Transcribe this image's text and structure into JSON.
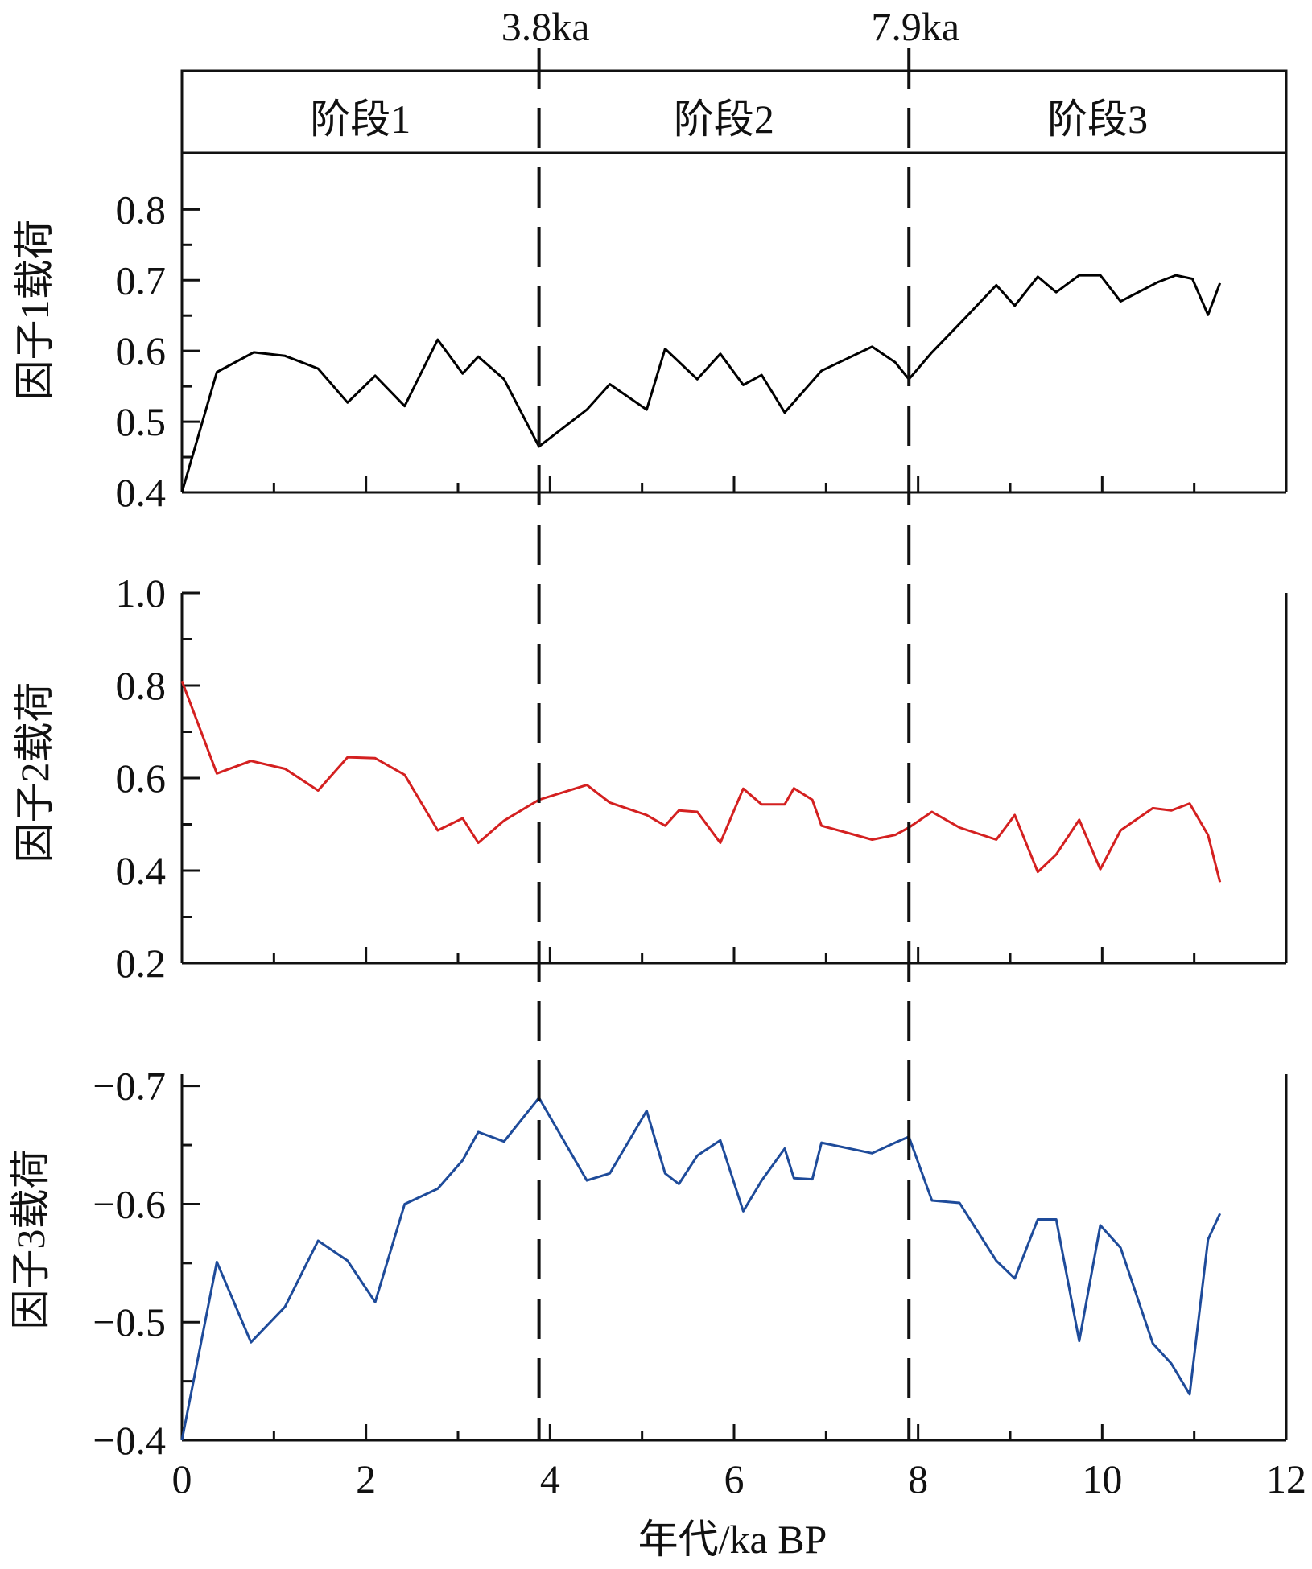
{
  "chart_data": {
    "type": "line",
    "xlabel": "年代/ka BP",
    "xlim": [
      0,
      12
    ],
    "xticks": [
      "0",
      "2",
      "4",
      "6",
      "8",
      "10",
      "12"
    ],
    "markers": [
      {
        "label": "3.8ka",
        "x": 3.88
      },
      {
        "label": "7.9ka",
        "x": 7.9
      }
    ],
    "stages": [
      "阶段1",
      "阶段2",
      "阶段3"
    ],
    "panels": [
      {
        "ylabel": "因子1载荷",
        "ylim": [
          0.4,
          0.88
        ],
        "yticks": [
          "0.4",
          "0.5",
          "0.6",
          "0.7",
          "0.8"
        ],
        "color": "#000000",
        "x": [
          0.0,
          0.38,
          0.78,
          1.12,
          1.48,
          1.8,
          2.1,
          2.42,
          2.78,
          3.05,
          3.22,
          3.5,
          3.88,
          4.4,
          4.65,
          5.05,
          5.25,
          5.6,
          5.85,
          6.1,
          6.3,
          6.55,
          6.95,
          7.5,
          7.75,
          7.9,
          8.15,
          8.5,
          8.85,
          9.05,
          9.3,
          9.5,
          9.75,
          9.98,
          10.2,
          10.6,
          10.8,
          10.98,
          11.15,
          11.28
        ],
        "values": [
          0.4,
          0.57,
          0.598,
          0.593,
          0.575,
          0.527,
          0.565,
          0.522,
          0.616,
          0.568,
          0.592,
          0.56,
          0.465,
          0.517,
          0.553,
          0.517,
          0.603,
          0.56,
          0.596,
          0.552,
          0.566,
          0.513,
          0.572,
          0.606,
          0.584,
          0.56,
          0.598,
          0.645,
          0.693,
          0.664,
          0.705,
          0.683,
          0.707,
          0.707,
          0.67,
          0.697,
          0.707,
          0.702,
          0.651,
          0.696
        ]
      },
      {
        "ylabel": "因子2载荷",
        "ylim": [
          0.2,
          1.0
        ],
        "yticks": [
          "0.2",
          "0.4",
          "0.6",
          "0.8",
          "1.0"
        ],
        "color": "#d42020",
        "x": [
          0.0,
          0.38,
          0.75,
          1.12,
          1.48,
          1.8,
          2.1,
          2.42,
          2.78,
          3.05,
          3.22,
          3.5,
          3.88,
          4.4,
          4.65,
          5.05,
          5.25,
          5.4,
          5.6,
          5.85,
          6.1,
          6.3,
          6.55,
          6.65,
          6.85,
          6.95,
          7.5,
          7.75,
          7.9,
          8.15,
          8.45,
          8.85,
          9.05,
          9.3,
          9.5,
          9.75,
          9.98,
          10.2,
          10.55,
          10.75,
          10.95,
          11.15,
          11.28
        ],
        "values": [
          0.81,
          0.61,
          0.637,
          0.62,
          0.573,
          0.645,
          0.643,
          0.607,
          0.487,
          0.513,
          0.46,
          0.508,
          0.553,
          0.585,
          0.547,
          0.52,
          0.497,
          0.53,
          0.527,
          0.46,
          0.577,
          0.543,
          0.543,
          0.578,
          0.553,
          0.497,
          0.467,
          0.477,
          0.493,
          0.527,
          0.493,
          0.467,
          0.52,
          0.397,
          0.435,
          0.51,
          0.403,
          0.487,
          0.535,
          0.53,
          0.545,
          0.477,
          0.375
        ]
      },
      {
        "ylabel": "因子3载荷",
        "ylim": [
          -0.4,
          -0.71
        ],
        "yticks": [
          "−0.4",
          "−0.5",
          "−0.6",
          "−0.7"
        ],
        "color": "#1e4b9a",
        "x": [
          0.0,
          0.38,
          0.75,
          1.12,
          1.48,
          1.8,
          2.1,
          2.42,
          2.78,
          3.05,
          3.22,
          3.5,
          3.88,
          4.4,
          4.65,
          5.05,
          5.25,
          5.4,
          5.6,
          5.85,
          6.1,
          6.3,
          6.55,
          6.65,
          6.85,
          6.95,
          7.5,
          7.75,
          7.9,
          8.15,
          8.45,
          8.85,
          9.05,
          9.3,
          9.5,
          9.75,
          9.98,
          10.2,
          10.55,
          10.75,
          10.95,
          11.15,
          11.28
        ],
        "values": [
          -0.4,
          -0.551,
          -0.483,
          -0.513,
          -0.569,
          -0.552,
          -0.517,
          -0.6,
          -0.613,
          -0.637,
          -0.661,
          -0.653,
          -0.69,
          -0.62,
          -0.626,
          -0.679,
          -0.626,
          -0.617,
          -0.641,
          -0.654,
          -0.594,
          -0.62,
          -0.647,
          -0.622,
          -0.621,
          -0.652,
          -0.643,
          -0.652,
          -0.657,
          -0.603,
          -0.601,
          -0.552,
          -0.537,
          -0.587,
          -0.587,
          -0.484,
          -0.582,
          -0.563,
          -0.482,
          -0.465,
          -0.439,
          -0.57,
          -0.592
        ]
      }
    ]
  }
}
